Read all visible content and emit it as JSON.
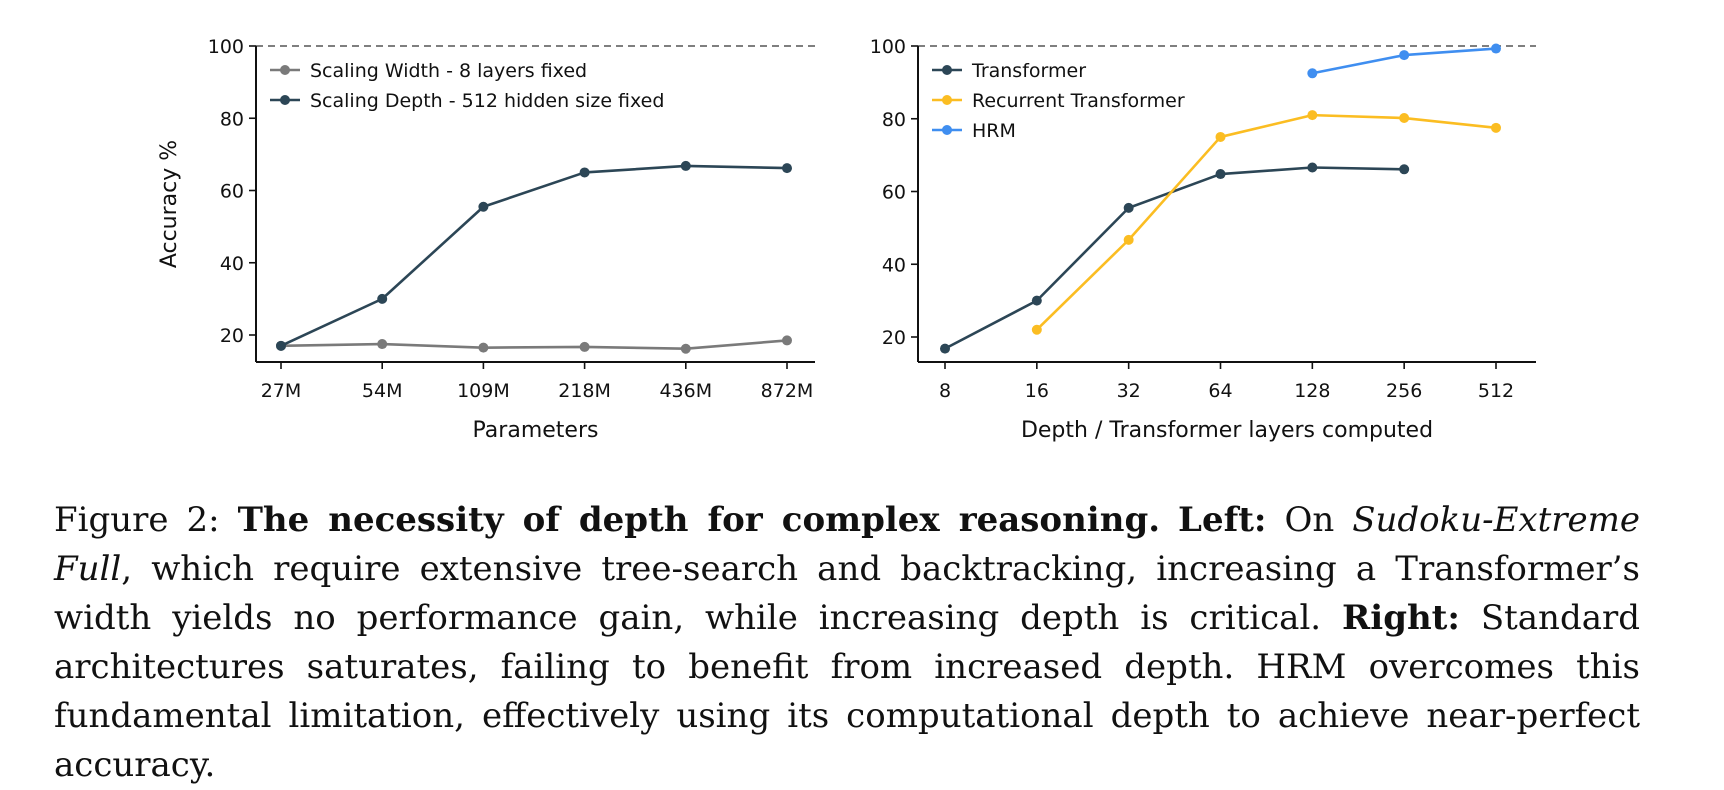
{
  "chart_data": [
    {
      "type": "line",
      "panel": "left",
      "x": [
        "27M",
        "54M",
        "109M",
        "218M",
        "436M",
        "872M"
      ],
      "xlabel": "Parameters",
      "ylabel": "Accuracy %",
      "ylim": [
        12.5,
        100
      ],
      "yticks": [
        20,
        40,
        60,
        80,
        100
      ],
      "reference_line": 100,
      "legend_position": "top-left",
      "grid": false,
      "series": [
        {
          "name": "Scaling Width - 8 layers fixed",
          "color": "#7a7a7a",
          "values": [
            17.0,
            17.5,
            16.5,
            16.7,
            16.2,
            18.5
          ]
        },
        {
          "name": "Scaling Depth - 512 hidden size fixed",
          "color": "#2c4656",
          "values": [
            17.0,
            30.0,
            55.5,
            65.0,
            66.8,
            66.2
          ]
        }
      ]
    },
    {
      "type": "line",
      "panel": "right",
      "x": [
        "8",
        "16",
        "32",
        "64",
        "128",
        "256",
        "512"
      ],
      "xlabel": "Depth / Transformer layers computed",
      "ylabel": "",
      "ylim": [
        13,
        100
      ],
      "yticks": [
        20,
        40,
        60,
        80,
        100
      ],
      "reference_line": 100,
      "legend_position": "top-left",
      "grid": false,
      "series": [
        {
          "name": "Transformer",
          "color": "#2c4656",
          "x": [
            "8",
            "16",
            "32",
            "64",
            "128",
            "256"
          ],
          "values": [
            16.8,
            30.0,
            55.5,
            64.8,
            66.6,
            66.1
          ]
        },
        {
          "name": "Recurrent Transformer",
          "color": "#fbbd22",
          "x": [
            "16",
            "32",
            "64",
            "128",
            "256",
            "512"
          ],
          "values": [
            22.0,
            46.7,
            75.0,
            81.0,
            80.2,
            77.5
          ]
        },
        {
          "name": "HRM",
          "color": "#3f8ef0",
          "x": [
            "128",
            "256",
            "512"
          ],
          "values": [
            92.5,
            97.5,
            99.3
          ]
        }
      ]
    }
  ],
  "caption": {
    "prefix": "Figure 2: ",
    "title": "The necessity of depth for complex reasoning.",
    "left_label": "Left:",
    "left_text_1": " On ",
    "left_dataset": "Sudoku-Extreme Full",
    "left_text_2": ", which require extensive tree-search and backtracking, increasing a Transformer’s width yields no performance gain, while increasing depth is critical. ",
    "right_label": "Right:",
    "right_text": " Standard architectures saturates, failing to benefit from increased depth. HRM overcomes this fundamental limitation, effectively using its computational depth to achieve near-perfect accuracy."
  }
}
